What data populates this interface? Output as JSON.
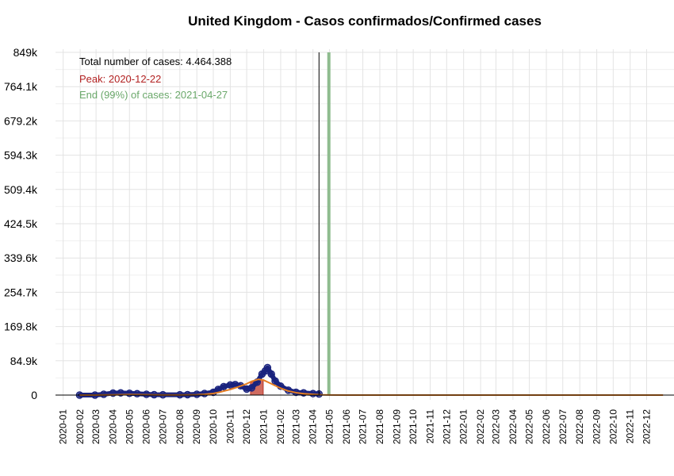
{
  "chart_data": {
    "type": "line",
    "title": "United Kingdom - Casos confirmados/Confirmed cases",
    "xlabel": "",
    "ylabel": "",
    "y_ticks": [
      {
        "value": 0,
        "label": "0"
      },
      {
        "value": 84900,
        "label": "84.9k"
      },
      {
        "value": 169800,
        "label": "169.8k"
      },
      {
        "value": 254700,
        "label": "254.7k"
      },
      {
        "value": 339600,
        "label": "339.6k"
      },
      {
        "value": 424500,
        "label": "424.5k"
      },
      {
        "value": 509400,
        "label": "509.4k"
      },
      {
        "value": 594300,
        "label": "594.3k"
      },
      {
        "value": 679200,
        "label": "679.2k"
      },
      {
        "value": 764100,
        "label": "764.1k"
      },
      {
        "value": 849000,
        "label": "849k"
      }
    ],
    "ylim": [
      0,
      849000
    ],
    "x_ticks": [
      "2020-01",
      "2020-02",
      "2020-03",
      "2020-04",
      "2020-05",
      "2020-06",
      "2020-07",
      "2020-08",
      "2020-09",
      "2020-10",
      "2020-11",
      "2020-12",
      "2021-01",
      "2021-02",
      "2021-03",
      "2021-04",
      "2021-05",
      "2021-06",
      "2021-07",
      "2021-08",
      "2021-09",
      "2021-10",
      "2021-11",
      "2021-12",
      "2022-01",
      "2022-02",
      "2022-03",
      "2022-04",
      "2022-05",
      "2022-06",
      "2022-07",
      "2022-08",
      "2022-09",
      "2022-10",
      "2022-11",
      "2022-12"
    ],
    "xlim": [
      "2019-12-18",
      "2023-01-20"
    ],
    "grid": true,
    "annotations": {
      "total": "Total number of cases: 4.464.388",
      "peak": "Peak: 2020-12-22",
      "end": "End (99%) of cases: 2021-04-27"
    },
    "last_data_date": "2021-04-12",
    "end_bar_value": 849000,
    "end_bar_date": "2021-04-30",
    "series": [
      {
        "kind": "observed",
        "x": [
          "2020-01-31",
          "2020-02-28",
          "2020-03-15",
          "2020-04-01",
          "2020-04-15",
          "2020-05-01",
          "2020-05-15",
          "2020-06-01",
          "2020-06-15",
          "2020-07-01",
          "2020-08-01",
          "2020-08-15",
          "2020-09-01",
          "2020-09-15",
          "2020-10-01",
          "2020-10-10",
          "2020-10-20",
          "2020-11-01",
          "2020-11-10",
          "2020-11-20",
          "2020-12-01",
          "2020-12-10",
          "2020-12-20",
          "2020-12-29",
          "2021-01-04",
          "2021-01-08",
          "2021-01-15",
          "2021-01-22",
          "2021-02-01",
          "2021-02-15",
          "2021-03-01",
          "2021-03-15",
          "2021-04-01",
          "2021-04-12"
        ],
        "y": [
          0,
          0,
          2000,
          5000,
          5500,
          4500,
          3500,
          2000,
          1000,
          700,
          800,
          1100,
          2000,
          4000,
          7000,
          14000,
          21000,
          25000,
          26000,
          23000,
          15000,
          18000,
          32000,
          52000,
          60000,
          68000,
          52000,
          35000,
          22000,
          12000,
          7000,
          5500,
          3800,
          2600
        ]
      },
      {
        "kind": "fitted",
        "x": [
          "2020-01-31",
          "2020-03-01",
          "2020-04-01",
          "2020-05-01",
          "2020-06-01",
          "2020-07-01",
          "2020-08-01",
          "2020-09-01",
          "2020-09-15",
          "2020-10-01",
          "2020-10-15",
          "2020-11-01",
          "2020-11-15",
          "2020-12-01",
          "2020-12-10",
          "2020-12-22",
          "2021-01-01",
          "2021-01-15",
          "2021-02-01",
          "2021-02-15",
          "2021-03-01",
          "2021-03-15",
          "2021-04-01",
          "2021-04-15",
          "2021-05-01",
          "2021-06-01",
          "2022-12-31"
        ],
        "y": [
          0,
          0,
          500,
          1200,
          800,
          300,
          200,
          800,
          1800,
          4000,
          8000,
          14000,
          20000,
          28000,
          34000,
          39000,
          37000,
          28000,
          17000,
          10000,
          6000,
          3500,
          1800,
          800,
          300,
          0,
          0
        ]
      },
      {
        "kind": "peak-area",
        "x": [
          "2020-12-08",
          "2020-12-12",
          "2020-12-16",
          "2020-12-20",
          "2020-12-22",
          "2020-12-25",
          "2020-12-28",
          "2020-12-31"
        ],
        "y": [
          30000,
          33000,
          36000,
          38500,
          39000,
          38500,
          37500,
          36000
        ]
      }
    ]
  },
  "colors": {
    "observed": "#1a237e",
    "fitted": "#e67e22",
    "peak": "#c0392b",
    "end": "#8fbc8f",
    "grid": "#e3e3e3",
    "total_text": "#000000",
    "peak_text": "#b22222",
    "end_text": "#6aa86a"
  }
}
